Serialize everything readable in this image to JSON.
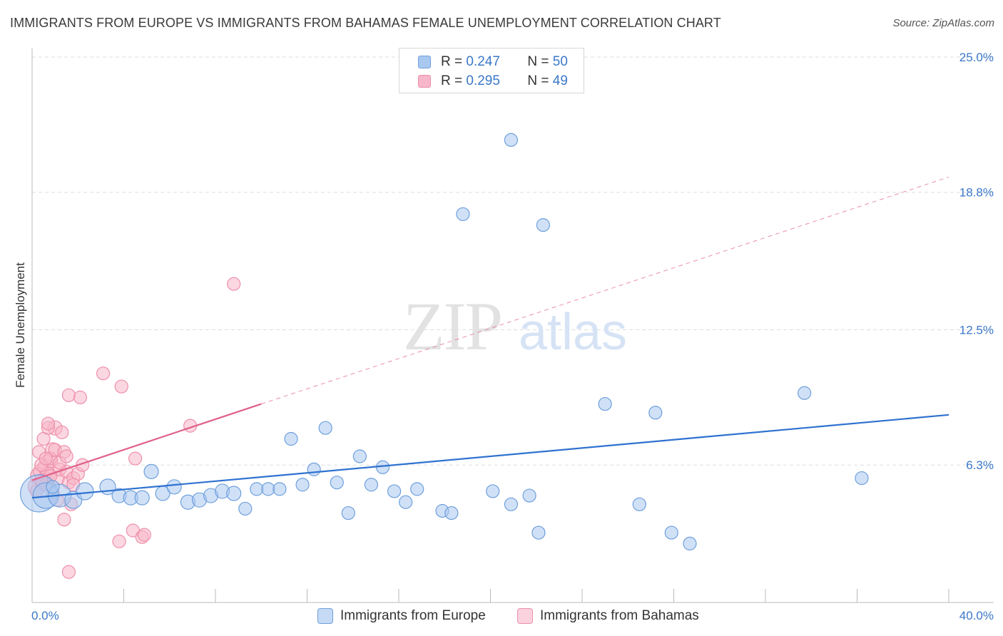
{
  "title": "IMMIGRANTS FROM EUROPE VS IMMIGRANTS FROM BAHAMAS FEMALE UNEMPLOYMENT CORRELATION CHART",
  "source": "Source: ZipAtlas.com",
  "watermark": {
    "zip": "ZIP",
    "atlas": "atlas"
  },
  "colors": {
    "europe_fill": "#a9c8f0",
    "europe_stroke": "#6e9fdc",
    "europe_line": "#2f72d0",
    "bahamas_fill": "#f7b6c9",
    "bahamas_stroke": "#ee8fab",
    "bahamas_line": "#e0608a",
    "tick_text": "#3b78c8",
    "grid": "#dddddd"
  },
  "legend": {
    "europe": {
      "r_label": "R = ",
      "r_value": "0.247",
      "n_label": "N = ",
      "n_value": "50"
    },
    "bahamas": {
      "r_label": "R = ",
      "r_value": "0.295",
      "n_label": "N = ",
      "n_value": "49"
    }
  },
  "bottom_legend": {
    "europe": "Immigrants from Europe",
    "bahamas": "Immigrants from Bahamas"
  },
  "chart_data": {
    "type": "scatter",
    "title": "IMMIGRANTS FROM EUROPE VS IMMIGRANTS FROM BAHAMAS FEMALE UNEMPLOYMENT CORRELATION CHART",
    "xlabel": "",
    "ylabel": "Female Unemployment",
    "xlim": [
      0,
      40
    ],
    "ylim": [
      0,
      25
    ],
    "x_tick_labels": [
      "0.0%",
      "40.0%"
    ],
    "y_ticks": [
      6.3,
      12.5,
      18.8,
      25.0
    ],
    "y_tick_labels": [
      "6.3%",
      "12.5%",
      "18.8%",
      "25.0%"
    ],
    "grid": true,
    "legend_position": "top-center",
    "series": [
      {
        "name": "Immigrants from Europe",
        "R": 0.247,
        "N": 50,
        "trend": {
          "x0": 0,
          "y0": 4.8,
          "x1": 40,
          "y1": 8.6
        },
        "points": [
          [
            0.3,
            5.0,
            26
          ],
          [
            0.6,
            4.9,
            18
          ],
          [
            1.2,
            4.9,
            16
          ],
          [
            1.8,
            4.7,
            12
          ],
          [
            2.3,
            5.1,
            12
          ],
          [
            3.3,
            5.3,
            11
          ],
          [
            3.8,
            4.9,
            10
          ],
          [
            4.3,
            4.8,
            10
          ],
          [
            4.8,
            4.8,
            10
          ],
          [
            5.2,
            6.0,
            10
          ],
          [
            5.7,
            5.0,
            10
          ],
          [
            6.2,
            5.3,
            10
          ],
          [
            6.8,
            4.6,
            10
          ],
          [
            7.3,
            4.7,
            10
          ],
          [
            7.8,
            4.9,
            10
          ],
          [
            8.3,
            5.1,
            10
          ],
          [
            8.8,
            5.0,
            10
          ],
          [
            9.3,
            4.3,
            9
          ],
          [
            9.8,
            5.2,
            9
          ],
          [
            10.3,
            5.2,
            9
          ],
          [
            10.8,
            5.2,
            9
          ],
          [
            11.3,
            7.5,
            9
          ],
          [
            11.8,
            5.4,
            9
          ],
          [
            12.3,
            6.1,
            9
          ],
          [
            12.8,
            8.0,
            9
          ],
          [
            13.3,
            5.5,
            9
          ],
          [
            13.8,
            4.1,
            9
          ],
          [
            14.3,
            6.7,
            9
          ],
          [
            14.8,
            5.4,
            9
          ],
          [
            15.3,
            6.2,
            9
          ],
          [
            15.8,
            5.1,
            9
          ],
          [
            16.3,
            4.6,
            9
          ],
          [
            16.8,
            5.2,
            9
          ],
          [
            17.9,
            4.2,
            9
          ],
          [
            18.3,
            4.1,
            9
          ],
          [
            18.8,
            17.8,
            9
          ],
          [
            20.1,
            5.1,
            9
          ],
          [
            20.9,
            21.2,
            9
          ],
          [
            20.9,
            4.5,
            9
          ],
          [
            21.7,
            4.9,
            9
          ],
          [
            22.1,
            3.2,
            9
          ],
          [
            22.3,
            17.3,
            9
          ],
          [
            25.0,
            9.1,
            9
          ],
          [
            26.5,
            4.5,
            9
          ],
          [
            27.2,
            8.7,
            9
          ],
          [
            27.9,
            3.2,
            9
          ],
          [
            28.7,
            2.7,
            9
          ],
          [
            33.7,
            9.6,
            9
          ],
          [
            36.2,
            5.7,
            9
          ],
          [
            0.9,
            5.3,
            9
          ]
        ]
      },
      {
        "name": "Immigrants from Bahamas",
        "R": 0.295,
        "N": 49,
        "trend": {
          "x0": 0,
          "y0": 5.6,
          "x1": 10,
          "y1": 9.1,
          "dashed_to": {
            "x": 40,
            "y": 19.5
          }
        },
        "points": [
          [
            0.2,
            5.3,
            12
          ],
          [
            0.3,
            5.8,
            12
          ],
          [
            0.4,
            6.0,
            11
          ],
          [
            0.5,
            5.5,
            11
          ],
          [
            0.6,
            6.2,
            11
          ],
          [
            0.7,
            5.9,
            10
          ],
          [
            0.8,
            6.5,
            10
          ],
          [
            0.9,
            7.0,
            10
          ],
          [
            1.0,
            8.0,
            10
          ],
          [
            1.1,
            5.7,
            10
          ],
          [
            0.2,
            5.1,
            9
          ],
          [
            0.4,
            6.3,
            9
          ],
          [
            0.5,
            7.5,
            9
          ],
          [
            0.6,
            5.4,
            9
          ],
          [
            0.7,
            8.0,
            9
          ],
          [
            0.7,
            8.2,
            9
          ],
          [
            0.8,
            6.6,
            9
          ],
          [
            0.9,
            5.0,
            9
          ],
          [
            1.0,
            7.0,
            9
          ],
          [
            1.1,
            4.7,
            9
          ],
          [
            1.2,
            6.1,
            9
          ],
          [
            1.3,
            7.8,
            9
          ],
          [
            1.4,
            6.9,
            9
          ],
          [
            1.5,
            6.0,
            9
          ],
          [
            1.6,
            5.5,
            9
          ],
          [
            1.6,
            9.5,
            9
          ],
          [
            1.8,
            5.7,
            9
          ],
          [
            2.0,
            5.9,
            9
          ],
          [
            2.2,
            6.3,
            9
          ],
          [
            0.3,
            6.9,
            9
          ],
          [
            0.6,
            6.6,
            9
          ],
          [
            0.8,
            5.8,
            9
          ],
          [
            1.2,
            6.4,
            9
          ],
          [
            1.4,
            3.8,
            9
          ],
          [
            1.5,
            6.7,
            9
          ],
          [
            1.6,
            1.4,
            9
          ],
          [
            1.7,
            4.5,
            9
          ],
          [
            1.8,
            5.4,
            9
          ],
          [
            2.1,
            9.4,
            9
          ],
          [
            3.1,
            10.5,
            9
          ],
          [
            3.8,
            2.8,
            9
          ],
          [
            3.9,
            9.9,
            9
          ],
          [
            4.4,
            3.3,
            9
          ],
          [
            4.5,
            6.6,
            9
          ],
          [
            4.8,
            3.0,
            9
          ],
          [
            4.9,
            3.1,
            9
          ],
          [
            6.9,
            8.1,
            9
          ],
          [
            8.8,
            14.6,
            9
          ],
          [
            0.4,
            5.6,
            9
          ]
        ]
      }
    ]
  }
}
